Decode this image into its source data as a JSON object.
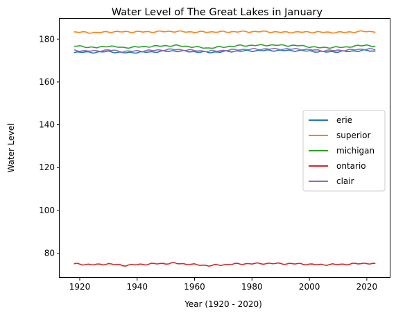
{
  "chart_data": {
    "type": "line",
    "title": "Water Level of The Great Lakes in January",
    "xlabel": "Year (1920 - 2020)",
    "ylabel": "Water Level",
    "xlim": [
      1913,
      2028
    ],
    "ylim": [
      68.5,
      189.5
    ],
    "xticks": [
      1920,
      1940,
      1960,
      1980,
      2000,
      2020
    ],
    "yticks": [
      80,
      100,
      120,
      140,
      160,
      180
    ],
    "grid": false,
    "legend_position": "center-right",
    "x_start": 1918,
    "x_end": 2023,
    "series": [
      {
        "name": "erie",
        "color": "#1f77b4",
        "keypoints": [
          [
            1918,
            173.9
          ],
          [
            1925,
            173.8
          ],
          [
            1930,
            174.2
          ],
          [
            1935,
            173.6
          ],
          [
            1945,
            174.0
          ],
          [
            1953,
            174.5
          ],
          [
            1965,
            173.8
          ],
          [
            1975,
            174.4
          ],
          [
            1986,
            174.7
          ],
          [
            1997,
            174.6
          ],
          [
            2005,
            174.0
          ],
          [
            2012,
            174.2
          ],
          [
            2020,
            174.7
          ],
          [
            2023,
            174.3
          ]
        ]
      },
      {
        "name": "superior",
        "color": "#ff7f0e",
        "keypoints": [
          [
            1918,
            183.3
          ],
          [
            1926,
            183.0
          ],
          [
            1930,
            183.4
          ],
          [
            1945,
            183.4
          ],
          [
            1952,
            183.6
          ],
          [
            1960,
            183.3
          ],
          [
            1970,
            183.4
          ],
          [
            1985,
            183.5
          ],
          [
            1990,
            183.2
          ],
          [
            2000,
            183.3
          ],
          [
            2010,
            183.1
          ],
          [
            2020,
            183.6
          ],
          [
            2023,
            183.4
          ]
        ]
      },
      {
        "name": "michigan",
        "color": "#2ca02c",
        "keypoints": [
          [
            1918,
            176.8
          ],
          [
            1926,
            176.0
          ],
          [
            1930,
            176.8
          ],
          [
            1935,
            176.0
          ],
          [
            1945,
            176.6
          ],
          [
            1953,
            177.0
          ],
          [
            1965,
            175.8
          ],
          [
            1975,
            176.9
          ],
          [
            1986,
            177.2
          ],
          [
            1997,
            176.9
          ],
          [
            2003,
            176.0
          ],
          [
            2012,
            176.2
          ],
          [
            2020,
            177.2
          ],
          [
            2023,
            176.6
          ]
        ]
      },
      {
        "name": "ontario",
        "color": "#d62728",
        "keypoints": [
          [
            1918,
            75.0
          ],
          [
            1925,
            74.6
          ],
          [
            1930,
            75.0
          ],
          [
            1935,
            74.3
          ],
          [
            1945,
            75.0
          ],
          [
            1953,
            75.3
          ],
          [
            1965,
            74.2
          ],
          [
            1975,
            75.0
          ],
          [
            1986,
            75.2
          ],
          [
            1997,
            75.0
          ],
          [
            2003,
            74.6
          ],
          [
            2012,
            74.8
          ],
          [
            2020,
            75.3
          ],
          [
            2023,
            74.9
          ]
        ]
      },
      {
        "name": "clair",
        "color": "#9467bd",
        "keypoints": [
          [
            1918,
            174.7
          ],
          [
            1925,
            174.4
          ],
          [
            1930,
            174.9
          ],
          [
            1935,
            174.2
          ],
          [
            1945,
            174.7
          ],
          [
            1953,
            175.2
          ],
          [
            1965,
            174.3
          ],
          [
            1975,
            175.1
          ],
          [
            1986,
            175.4
          ],
          [
            1997,
            175.3
          ],
          [
            2005,
            174.6
          ],
          [
            2012,
            174.8
          ],
          [
            2020,
            175.4
          ],
          [
            2023,
            175.0
          ]
        ]
      }
    ]
  }
}
